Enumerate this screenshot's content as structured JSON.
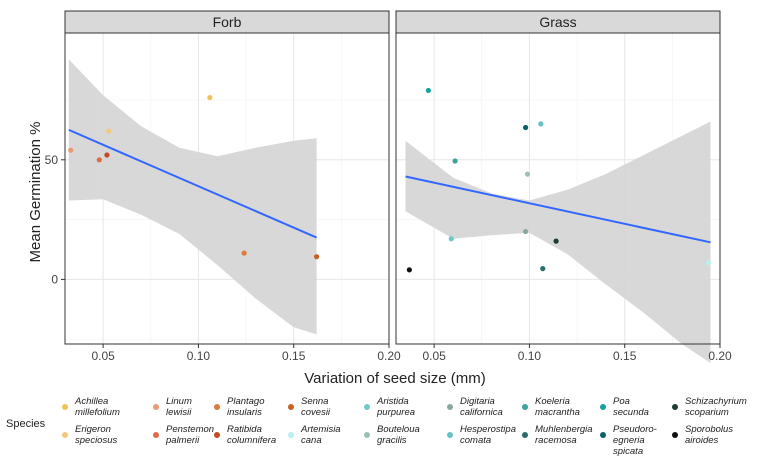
{
  "chart_data": {
    "type": "scatter",
    "ylabel": "Mean Germination %",
    "xlabel": "Variation of seed size (mm)",
    "xlim": [
      0.03,
      0.2
    ],
    "ylim": [
      -27,
      103
    ],
    "x_ticks": [
      0.05,
      0.1,
      0.15,
      0.2
    ],
    "x_tick_labels": [
      "0.05",
      "0.10",
      "0.15",
      "0.20"
    ],
    "y_ticks": [
      0,
      50
    ],
    "y_tick_labels": [
      "0",
      "50"
    ],
    "panels": [
      {
        "title": "Forb",
        "trend": {
          "x": [
            0.032,
            0.162
          ],
          "y": [
            62.5,
            17.5
          ]
        },
        "ci_upper": {
          "x": [
            0.032,
            0.05,
            0.07,
            0.09,
            0.11,
            0.13,
            0.15,
            0.162
          ],
          "y": [
            92,
            77,
            64,
            55,
            51.5,
            55,
            58,
            59
          ]
        },
        "ci_lower": {
          "x": [
            0.032,
            0.05,
            0.07,
            0.09,
            0.11,
            0.13,
            0.15,
            0.162
          ],
          "y": [
            33,
            33.5,
            27,
            19,
            6,
            -8,
            -20,
            -23
          ]
        },
        "points": [
          {
            "species": "Achillea millefolium",
            "x": 0.106,
            "y": 76,
            "color": "#f0c25a"
          },
          {
            "species": "Erigeron speciosus",
            "x": 0.053,
            "y": 62,
            "color": "#f2c97a"
          },
          {
            "species": "Linum lewisii",
            "x": 0.033,
            "y": 54,
            "color": "#e89a72"
          },
          {
            "species": "Penstemon palmerii",
            "x": 0.048,
            "y": 50,
            "color": "#e06a46"
          },
          {
            "species": "Plantago insularis",
            "x": 0.124,
            "y": 11,
            "color": "#dd7a3c"
          },
          {
            "species": "Ratibida columnifera",
            "x": 0.052,
            "y": 52,
            "color": "#c84a24"
          },
          {
            "species": "Senna covesii",
            "x": 0.162,
            "y": 9.5,
            "color": "#c9601f"
          }
        ]
      },
      {
        "title": "Grass",
        "trend": {
          "x": [
            0.035,
            0.195
          ],
          "y": [
            43,
            15.5
          ]
        },
        "ci_upper": {
          "x": [
            0.035,
            0.06,
            0.08,
            0.1,
            0.12,
            0.14,
            0.16,
            0.18,
            0.195
          ],
          "y": [
            58,
            42.5,
            36,
            33,
            37.5,
            44,
            52,
            60,
            66
          ]
        },
        "ci_lower": {
          "x": [
            0.035,
            0.06,
            0.08,
            0.1,
            0.12,
            0.14,
            0.16,
            0.18,
            0.195
          ],
          "y": [
            28.5,
            17,
            18.5,
            19.5,
            10.5,
            -2,
            -14,
            -27,
            -35
          ]
        },
        "points": [
          {
            "species": "Aristida purpurea",
            "x": 0.059,
            "y": 17,
            "color": "#6ec9c9"
          },
          {
            "species": "Bouteloua gracilis",
            "x": 0.099,
            "y": 44,
            "color": "#9ebfb3"
          },
          {
            "species": "Digitaria californica",
            "x": 0.098,
            "y": 20,
            "color": "#8aa89a"
          },
          {
            "species": "Hesperostipa comata",
            "x": 0.106,
            "y": 65,
            "color": "#63c3c3"
          },
          {
            "species": "Koeleria macrantha",
            "x": 0.061,
            "y": 49.5,
            "color": "#3ca39a"
          },
          {
            "species": "Muhlenbergia racemosa",
            "x": 0.107,
            "y": 4.5,
            "color": "#2e6b6b"
          },
          {
            "species": "Poa secunda",
            "x": 0.047,
            "y": 79,
            "color": "#16a0a0"
          },
          {
            "species": "Pseudoroegneria spicata",
            "x": 0.098,
            "y": 63.5,
            "color": "#0d5f6e"
          },
          {
            "species": "Schizachyrium scoparium",
            "x": 0.114,
            "y": 16,
            "color": "#1c3d36"
          },
          {
            "species": "Sporobolus airoides",
            "x": 0.037,
            "y": 4,
            "color": "#111111"
          },
          {
            "species": "Artemisia cana",
            "x": 0.194,
            "y": 7,
            "color": "#b8f0ee"
          }
        ]
      }
    ]
  },
  "legend": {
    "title": "Species",
    "entries": [
      {
        "line1": "Achillea",
        "line2": "millefolium",
        "line3": "",
        "color": "#f0c25a"
      },
      {
        "line1": "Erigeron",
        "line2": "speciosus",
        "line3": "",
        "color": "#f2c97a"
      },
      {
        "line1": "Linum",
        "line2": "lewisii",
        "line3": "",
        "color": "#e89a72"
      },
      {
        "line1": "Penstemon",
        "line2": "palmerii",
        "line3": "",
        "color": "#e06a46"
      },
      {
        "line1": "Plantago",
        "line2": "insularis",
        "line3": "",
        "color": "#dd7a3c"
      },
      {
        "line1": "Ratibida",
        "line2": "columnifera",
        "line3": "",
        "color": "#c84a24"
      },
      {
        "line1": "Senna",
        "line2": "covesii",
        "line3": "",
        "color": "#c9601f"
      },
      {
        "line1": "Artemisia",
        "line2": "cana",
        "line3": "",
        "color": "#b8f0ee"
      },
      {
        "line1": "Aristida",
        "line2": "purpurea",
        "line3": "",
        "color": "#6ec9c9"
      },
      {
        "line1": "Bouteloua",
        "line2": "gracilis",
        "line3": "",
        "color": "#9ebfb3"
      },
      {
        "line1": "Digitaria",
        "line2": "californica",
        "line3": "",
        "color": "#8aa89a"
      },
      {
        "line1": "Hesperostipa",
        "line2": "comata",
        "line3": "",
        "color": "#63c3c3"
      },
      {
        "line1": "Koeleria",
        "line2": "macrantha",
        "line3": "",
        "color": "#3ca39a"
      },
      {
        "line1": "Muhlenbergia",
        "line2": "racemosa",
        "line3": "",
        "color": "#2e6b6b"
      },
      {
        "line1": "Poa",
        "line2": "secunda",
        "line3": "",
        "color": "#16a0a0"
      },
      {
        "line1": "Pseudoro-",
        "line2": "egneria",
        "line3": "spicata",
        "color": "#0d5f6e"
      },
      {
        "line1": "Schizachyrium",
        "line2": "scoparium",
        "line3": "",
        "color": "#1c3d36"
      },
      {
        "line1": "Sporobolus",
        "line2": "airoides",
        "line3": "",
        "color": "#111111"
      }
    ]
  },
  "colors": {
    "trend": "#3366ff",
    "ribbon": "#d4d4d4",
    "strip": "#d9d9d9",
    "grid_major": "#e6e6e6",
    "grid_minor": "#f2f2f2"
  }
}
